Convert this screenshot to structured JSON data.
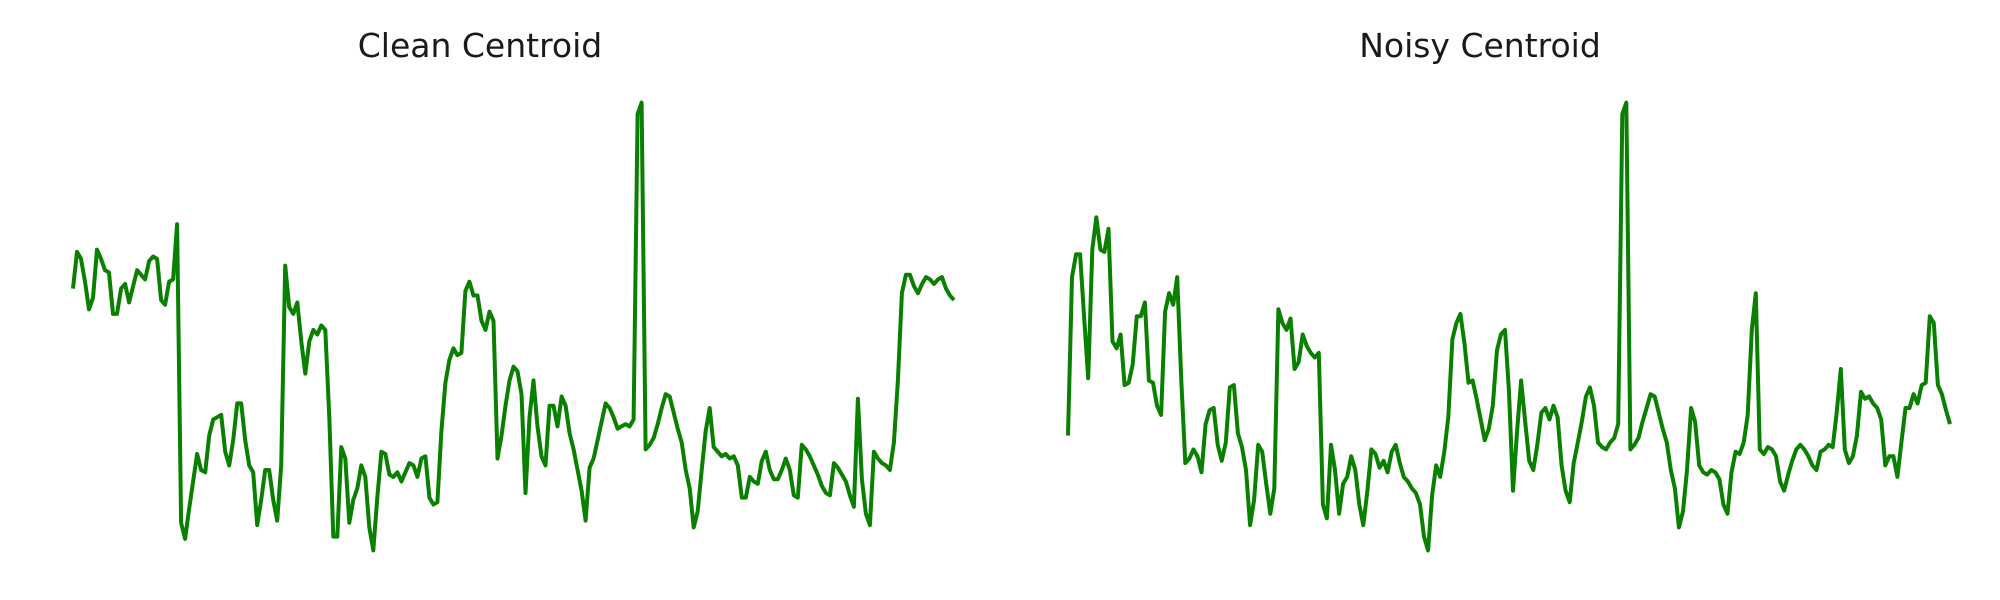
{
  "chart_data": [
    {
      "type": "line",
      "title": "Clean Centroid",
      "xlabel": "",
      "ylabel": "",
      "axes_visible": false,
      "grid": false,
      "legend": "none",
      "color": "#0a8000",
      "y": [
        0.24,
        0.4,
        0.37,
        0.27,
        0.15,
        0.2,
        0.41,
        0.37,
        0.32,
        0.31,
        0.13,
        0.13,
        0.24,
        0.26,
        0.18,
        0.25,
        0.32,
        0.3,
        0.28,
        0.36,
        0.38,
        0.37,
        0.19,
        0.17,
        0.27,
        0.28,
        0.52,
        -0.78,
        -0.85,
        -0.72,
        -0.6,
        -0.48,
        -0.55,
        -0.56,
        -0.4,
        -0.33,
        -0.32,
        -0.31,
        -0.47,
        -0.53,
        -0.42,
        -0.26,
        -0.26,
        -0.42,
        -0.53,
        -0.56,
        -0.79,
        -0.68,
        -0.55,
        -0.55,
        -0.68,
        -0.77,
        -0.53,
        0.34,
        0.16,
        0.13,
        0.18,
        0.01,
        -0.13,
        0.01,
        0.06,
        0.04,
        0.08,
        0.06,
        -0.32,
        -0.84,
        -0.84,
        -0.45,
        -0.5,
        -0.78,
        -0.68,
        -0.63,
        -0.53,
        -0.58,
        -0.8,
        -0.9,
        -0.67,
        -0.47,
        -0.48,
        -0.57,
        -0.58,
        -0.56,
        -0.6,
        -0.56,
        -0.52,
        -0.53,
        -0.58,
        -0.5,
        -0.49,
        -0.67,
        -0.7,
        -0.69,
        -0.38,
        -0.17,
        -0.07,
        -0.02,
        -0.05,
        -0.04,
        0.23,
        0.27,
        0.21,
        0.21,
        0.1,
        0.06,
        0.14,
        0.1,
        -0.5,
        -0.4,
        -0.27,
        -0.16,
        -0.1,
        -0.12,
        -0.22,
        -0.65,
        -0.32,
        -0.16,
        -0.36,
        -0.49,
        -0.53,
        -0.27,
        -0.27,
        -0.36,
        -0.23,
        -0.27,
        -0.39,
        -0.46,
        -0.55,
        -0.64,
        -0.77,
        -0.54,
        -0.5,
        -0.42,
        -0.34,
        -0.26,
        -0.28,
        -0.32,
        -0.37,
        -0.36,
        -0.35,
        -0.36,
        -0.33,
        1.0,
        1.05,
        -0.46,
        -0.44,
        -0.41,
        -0.35,
        -0.28,
        -0.22,
        -0.23,
        -0.3,
        -0.37,
        -0.43,
        -0.55,
        -0.63,
        -0.8,
        -0.73,
        -0.55,
        -0.38,
        -0.28,
        -0.45,
        -0.47,
        -0.49,
        -0.48,
        -0.5,
        -0.49,
        -0.53,
        -0.67,
        -0.67,
        -0.58,
        -0.6,
        -0.61,
        -0.51,
        -0.47,
        -0.55,
        -0.59,
        -0.59,
        -0.55,
        -0.5,
        -0.55,
        -0.66,
        -0.67,
        -0.44,
        -0.46,
        -0.49,
        -0.53,
        -0.57,
        -0.62,
        -0.65,
        -0.66,
        -0.52,
        -0.54,
        -0.57,
        -0.6,
        -0.66,
        -0.71,
        -0.24,
        -0.59,
        -0.74,
        -0.79,
        -0.47,
        -0.5,
        -0.52,
        -0.53,
        -0.55,
        -0.43,
        -0.16,
        0.22,
        0.3,
        0.3,
        0.25,
        0.22,
        0.26,
        0.29,
        0.28,
        0.26,
        0.28,
        0.29,
        0.24,
        0.21,
        0.19
      ]
    },
    {
      "type": "line",
      "title": "Noisy Centroid",
      "xlabel": "",
      "ylabel": "",
      "axes_visible": false,
      "grid": false,
      "legend": "none",
      "color": "#0a8000",
      "y": [
        -0.4,
        0.29,
        0.39,
        0.39,
        0.11,
        -0.15,
        0.41,
        0.55,
        0.41,
        0.4,
        0.5,
        0.01,
        -0.02,
        0.04,
        -0.18,
        -0.17,
        -0.09,
        0.12,
        0.12,
        0.18,
        -0.16,
        -0.17,
        -0.27,
        -0.31,
        0.14,
        0.22,
        0.17,
        0.29,
        -0.16,
        -0.52,
        -0.5,
        -0.46,
        -0.49,
        -0.56,
        -0.35,
        -0.29,
        -0.28,
        -0.44,
        -0.51,
        -0.43,
        -0.19,
        -0.18,
        -0.39,
        -0.45,
        -0.55,
        -0.79,
        -0.68,
        -0.44,
        -0.47,
        -0.61,
        -0.74,
        -0.63,
        0.15,
        0.09,
        0.06,
        0.11,
        -0.11,
        -0.08,
        0.04,
        -0.01,
        -0.04,
        -0.06,
        -0.04,
        -0.7,
        -0.76,
        -0.44,
        -0.55,
        -0.74,
        -0.61,
        -0.58,
        -0.49,
        -0.55,
        -0.7,
        -0.79,
        -0.64,
        -0.46,
        -0.48,
        -0.54,
        -0.51,
        -0.56,
        -0.47,
        -0.44,
        -0.52,
        -0.58,
        -0.6,
        -0.63,
        -0.65,
        -0.7,
        -0.84,
        -0.9,
        -0.66,
        -0.53,
        -0.58,
        -0.47,
        -0.32,
        0.02,
        0.09,
        0.13,
        0.0,
        -0.17,
        -0.16,
        -0.24,
        -0.33,
        -0.42,
        -0.37,
        -0.27,
        -0.03,
        0.04,
        0.06,
        -0.21,
        -0.64,
        -0.38,
        -0.16,
        -0.34,
        -0.51,
        -0.55,
        -0.44,
        -0.3,
        -0.28,
        -0.33,
        -0.27,
        -0.32,
        -0.53,
        -0.64,
        -0.69,
        -0.52,
        -0.43,
        -0.34,
        -0.23,
        -0.19,
        -0.27,
        -0.43,
        -0.45,
        -0.46,
        -0.43,
        -0.41,
        -0.35,
        1.0,
        1.05,
        -0.46,
        -0.44,
        -0.41,
        -0.34,
        -0.28,
        -0.22,
        -0.23,
        -0.3,
        -0.37,
        -0.43,
        -0.55,
        -0.63,
        -0.8,
        -0.73,
        -0.55,
        -0.28,
        -0.34,
        -0.53,
        -0.56,
        -0.57,
        -0.55,
        -0.56,
        -0.59,
        -0.7,
        -0.74,
        -0.56,
        -0.47,
        -0.48,
        -0.43,
        -0.31,
        0.06,
        0.22,
        -0.46,
        -0.48,
        -0.45,
        -0.46,
        -0.49,
        -0.6,
        -0.64,
        -0.57,
        -0.51,
        -0.46,
        -0.44,
        -0.46,
        -0.49,
        -0.53,
        -0.55,
        -0.47,
        -0.46,
        -0.44,
        -0.45,
        -0.3,
        -0.11,
        -0.46,
        -0.52,
        -0.49,
        -0.4,
        -0.21,
        -0.24,
        -0.23,
        -0.26,
        -0.28,
        -0.33,
        -0.53,
        -0.49,
        -0.49,
        -0.58,
        -0.43,
        -0.28,
        -0.28,
        -0.22,
        -0.26,
        -0.18,
        -0.17,
        0.12,
        0.09,
        -0.18,
        -0.22,
        -0.29,
        -0.35
      ]
    }
  ]
}
